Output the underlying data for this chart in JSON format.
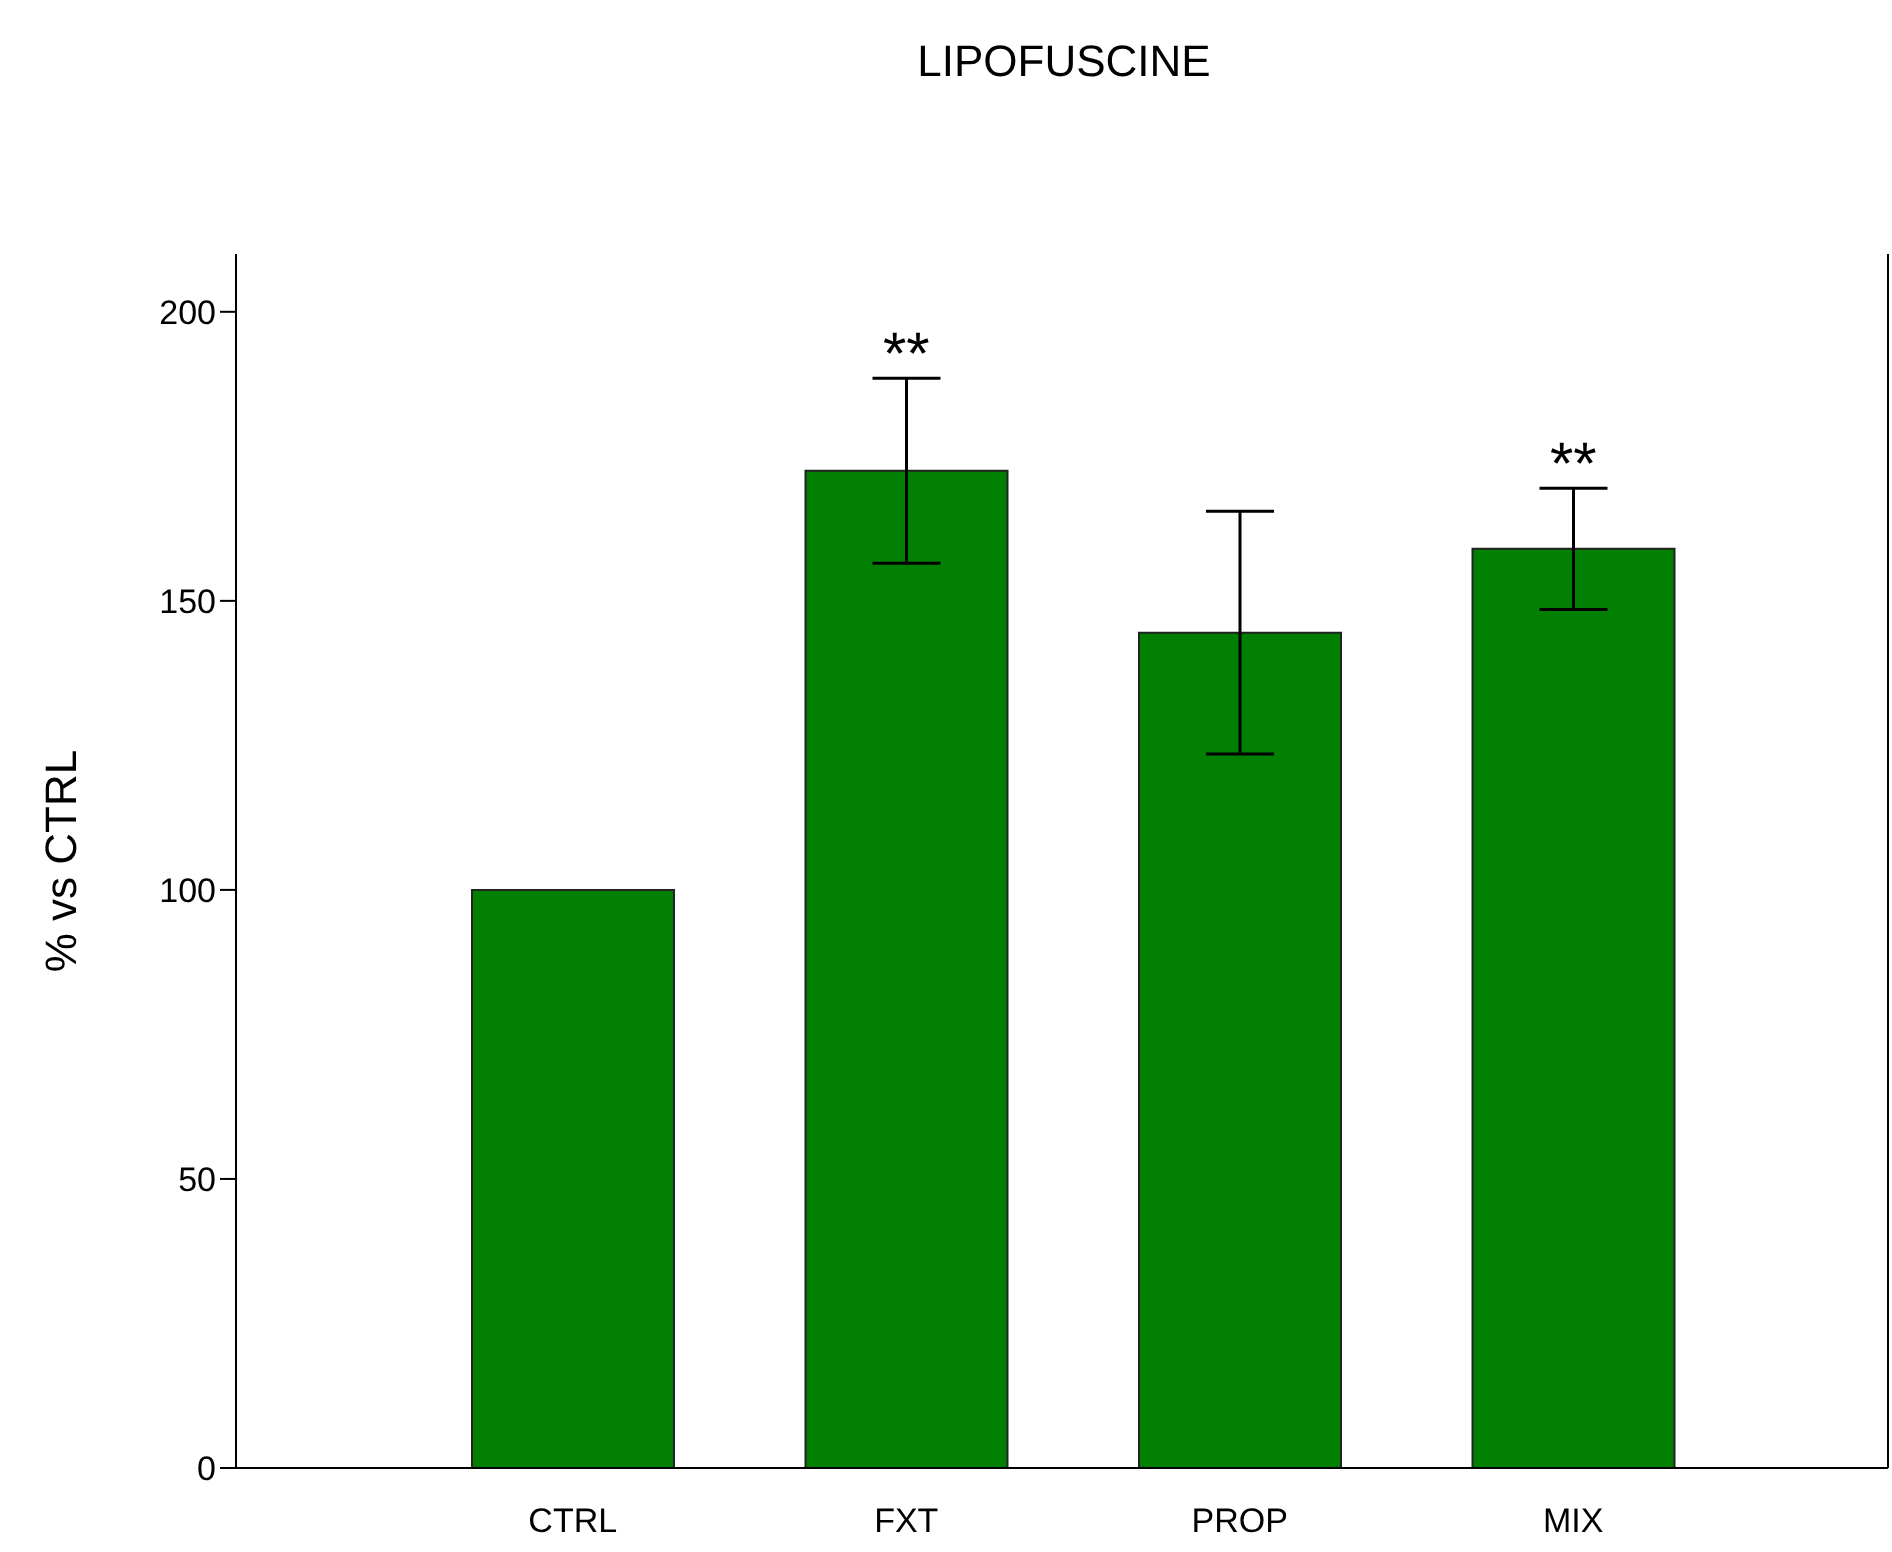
{
  "chart_data": {
    "type": "bar",
    "title": "LIPOFUSCINE",
    "ylabel": "% vs CTRL",
    "categories": [
      "CTRL",
      "FXT",
      "PROP",
      "MIX"
    ],
    "values": [
      100,
      172.5,
      144.5,
      159
    ],
    "errors": [
      null,
      16,
      21,
      10.5
    ],
    "color": "#007f00",
    "ylim": [
      0,
      210
    ],
    "yticks": [
      0,
      50,
      100,
      150,
      200
    ],
    "annotations": [
      {
        "text": "**",
        "x": "FXT",
        "y": 188.5
      },
      {
        "text": "**",
        "x": "MIX",
        "y": 169.5
      }
    ]
  }
}
